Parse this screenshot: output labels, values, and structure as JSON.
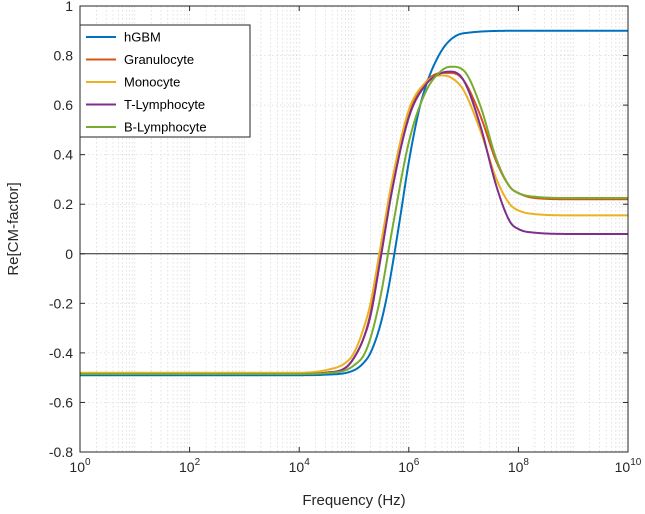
{
  "chart_data": {
    "type": "line",
    "title": "",
    "xlabel": "Frequency (Hz)",
    "ylabel": "Re[CM-factor]",
    "xscale": "log",
    "xlim": [
      1,
      10000000000
    ],
    "ylim": [
      -0.8,
      1
    ],
    "grid": true,
    "legend_position": "top-left",
    "x_ticks": [
      {
        "value": 1,
        "base": "10",
        "exp": "0"
      },
      {
        "value": 100,
        "base": "10",
        "exp": "2"
      },
      {
        "value": 10000,
        "base": "10",
        "exp": "4"
      },
      {
        "value": 1000000,
        "base": "10",
        "exp": "6"
      },
      {
        "value": 100000000,
        "base": "10",
        "exp": "8"
      },
      {
        "value": 10000000000,
        "base": "10",
        "exp": "10"
      }
    ],
    "y_ticks": [
      {
        "value": -0.8,
        "label": "-0.8"
      },
      {
        "value": -0.6,
        "label": "-0.6"
      },
      {
        "value": -0.4,
        "label": "-0.4"
      },
      {
        "value": -0.2,
        "label": "-0.2"
      },
      {
        "value": 0,
        "label": "0"
      },
      {
        "value": 0.2,
        "label": "0.2"
      },
      {
        "value": 0.4,
        "label": "0.4"
      },
      {
        "value": 0.6,
        "label": "0.6"
      },
      {
        "value": 0.8,
        "label": "0.8"
      },
      {
        "value": 1,
        "label": "1"
      }
    ],
    "reference_line_y": 0,
    "series": [
      {
        "name": "hGBM",
        "color": "#0072BD",
        "x": [
          1,
          10,
          100,
          1000,
          10000,
          30000,
          100000,
          150000,
          200000,
          300000,
          400000,
          500000,
          700000,
          1000000,
          1500000,
          2000000,
          3000000,
          5000000,
          10000000,
          100000000,
          1000000000,
          10000000000
        ],
        "y": [
          -0.49,
          -0.49,
          -0.49,
          -0.49,
          -0.49,
          -0.488,
          -0.47,
          -0.44,
          -0.4,
          -0.29,
          -0.17,
          -0.05,
          0.15,
          0.37,
          0.57,
          0.67,
          0.77,
          0.85,
          0.89,
          0.9,
          0.9,
          0.9
        ]
      },
      {
        "name": "Granulocyte",
        "color": "#D95319",
        "x": [
          1,
          10,
          100,
          1000,
          10000,
          30000,
          70000,
          100000,
          150000,
          200000,
          300000,
          500000,
          1000000,
          2000000,
          4000000,
          6000000,
          10000000,
          20000000,
          40000000,
          70000000,
          100000000,
          200000000,
          1000000000,
          10000000000
        ],
        "y": [
          -0.485,
          -0.485,
          -0.485,
          -0.485,
          -0.485,
          -0.48,
          -0.46,
          -0.42,
          -0.34,
          -0.24,
          -0.02,
          0.27,
          0.56,
          0.69,
          0.73,
          0.73,
          0.7,
          0.56,
          0.37,
          0.27,
          0.245,
          0.225,
          0.22,
          0.22
        ]
      },
      {
        "name": "Monocyte",
        "color": "#EDB120",
        "x": [
          1,
          10,
          100,
          1000,
          10000,
          30000,
          70000,
          100000,
          150000,
          200000,
          300000,
          500000,
          1000000,
          2000000,
          4000000,
          6000000,
          10000000,
          20000000,
          40000000,
          70000000,
          100000000,
          200000000,
          1000000000,
          10000000000
        ],
        "y": [
          -0.48,
          -0.48,
          -0.48,
          -0.48,
          -0.48,
          -0.47,
          -0.44,
          -0.4,
          -0.3,
          -0.2,
          0.02,
          0.3,
          0.58,
          0.69,
          0.72,
          0.71,
          0.66,
          0.5,
          0.3,
          0.2,
          0.175,
          0.16,
          0.155,
          0.155
        ]
      },
      {
        "name": "T-Lymphocyte",
        "color": "#7E2F8E",
        "x": [
          1,
          10,
          100,
          1000,
          10000,
          30000,
          70000,
          100000,
          150000,
          200000,
          300000,
          500000,
          1000000,
          2000000,
          4000000,
          6000000,
          10000000,
          20000000,
          40000000,
          70000000,
          100000000,
          200000000,
          1000000000,
          10000000000
        ],
        "y": [
          -0.485,
          -0.485,
          -0.485,
          -0.485,
          -0.485,
          -0.48,
          -0.46,
          -0.42,
          -0.34,
          -0.25,
          -0.03,
          0.26,
          0.55,
          0.68,
          0.73,
          0.735,
          0.7,
          0.52,
          0.27,
          0.13,
          0.1,
          0.085,
          0.08,
          0.08
        ]
      },
      {
        "name": "B-Lymphocyte",
        "color": "#77AC30",
        "x": [
          1,
          10,
          100,
          1000,
          10000,
          30000,
          70000,
          100000,
          150000,
          200000,
          300000,
          500000,
          1000000,
          2000000,
          4000000,
          6000000,
          10000000,
          20000000,
          40000000,
          70000000,
          100000000,
          200000000,
          1000000000,
          10000000000
        ],
        "y": [
          -0.485,
          -0.485,
          -0.485,
          -0.485,
          -0.485,
          -0.482,
          -0.47,
          -0.45,
          -0.41,
          -0.34,
          -0.18,
          0.1,
          0.45,
          0.65,
          0.74,
          0.755,
          0.74,
          0.6,
          0.38,
          0.27,
          0.245,
          0.23,
          0.225,
          0.225
        ]
      }
    ]
  }
}
